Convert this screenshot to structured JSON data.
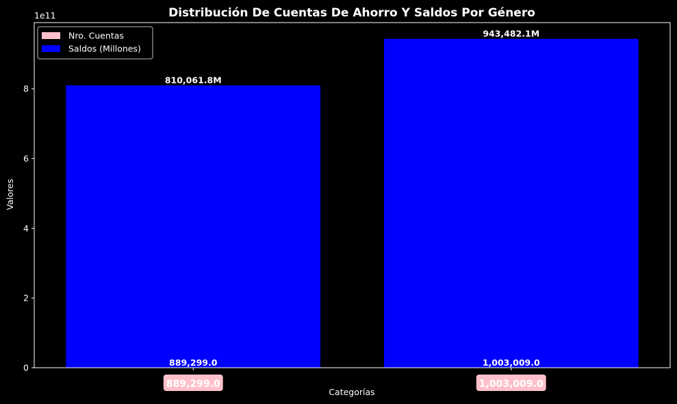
{
  "chart_data": {
    "type": "bar",
    "title": "Distribución De Cuentas De Ahorro Y Saldos Por Género",
    "xlabel": "Categorías",
    "ylabel": "Valores",
    "offset_label": "1e11",
    "ylim": [
      0,
      990000000000
    ],
    "yticks": [
      0,
      200000000000,
      400000000000,
      600000000000,
      800000000000
    ],
    "ytick_labels": [
      "0",
      "2",
      "4",
      "6",
      "8"
    ],
    "categories": [
      "",
      ""
    ],
    "series": [
      {
        "name": "Nro. Cuentas",
        "color": "#ffc0cb",
        "values": [
          889299,
          1003009
        ],
        "value_labels": [
          "889,299.0",
          "1,003,009.0"
        ],
        "badge_labels": [
          "889,299.0",
          "1,003,009.0"
        ]
      },
      {
        "name": "Saldos (Millones)",
        "color": "#0000ff",
        "values": [
          810061800000,
          943482100000
        ],
        "value_labels": [
          "810,061.8M",
          "943,482.1M"
        ]
      }
    ],
    "legend_position": "upper-left",
    "grid": false
  }
}
